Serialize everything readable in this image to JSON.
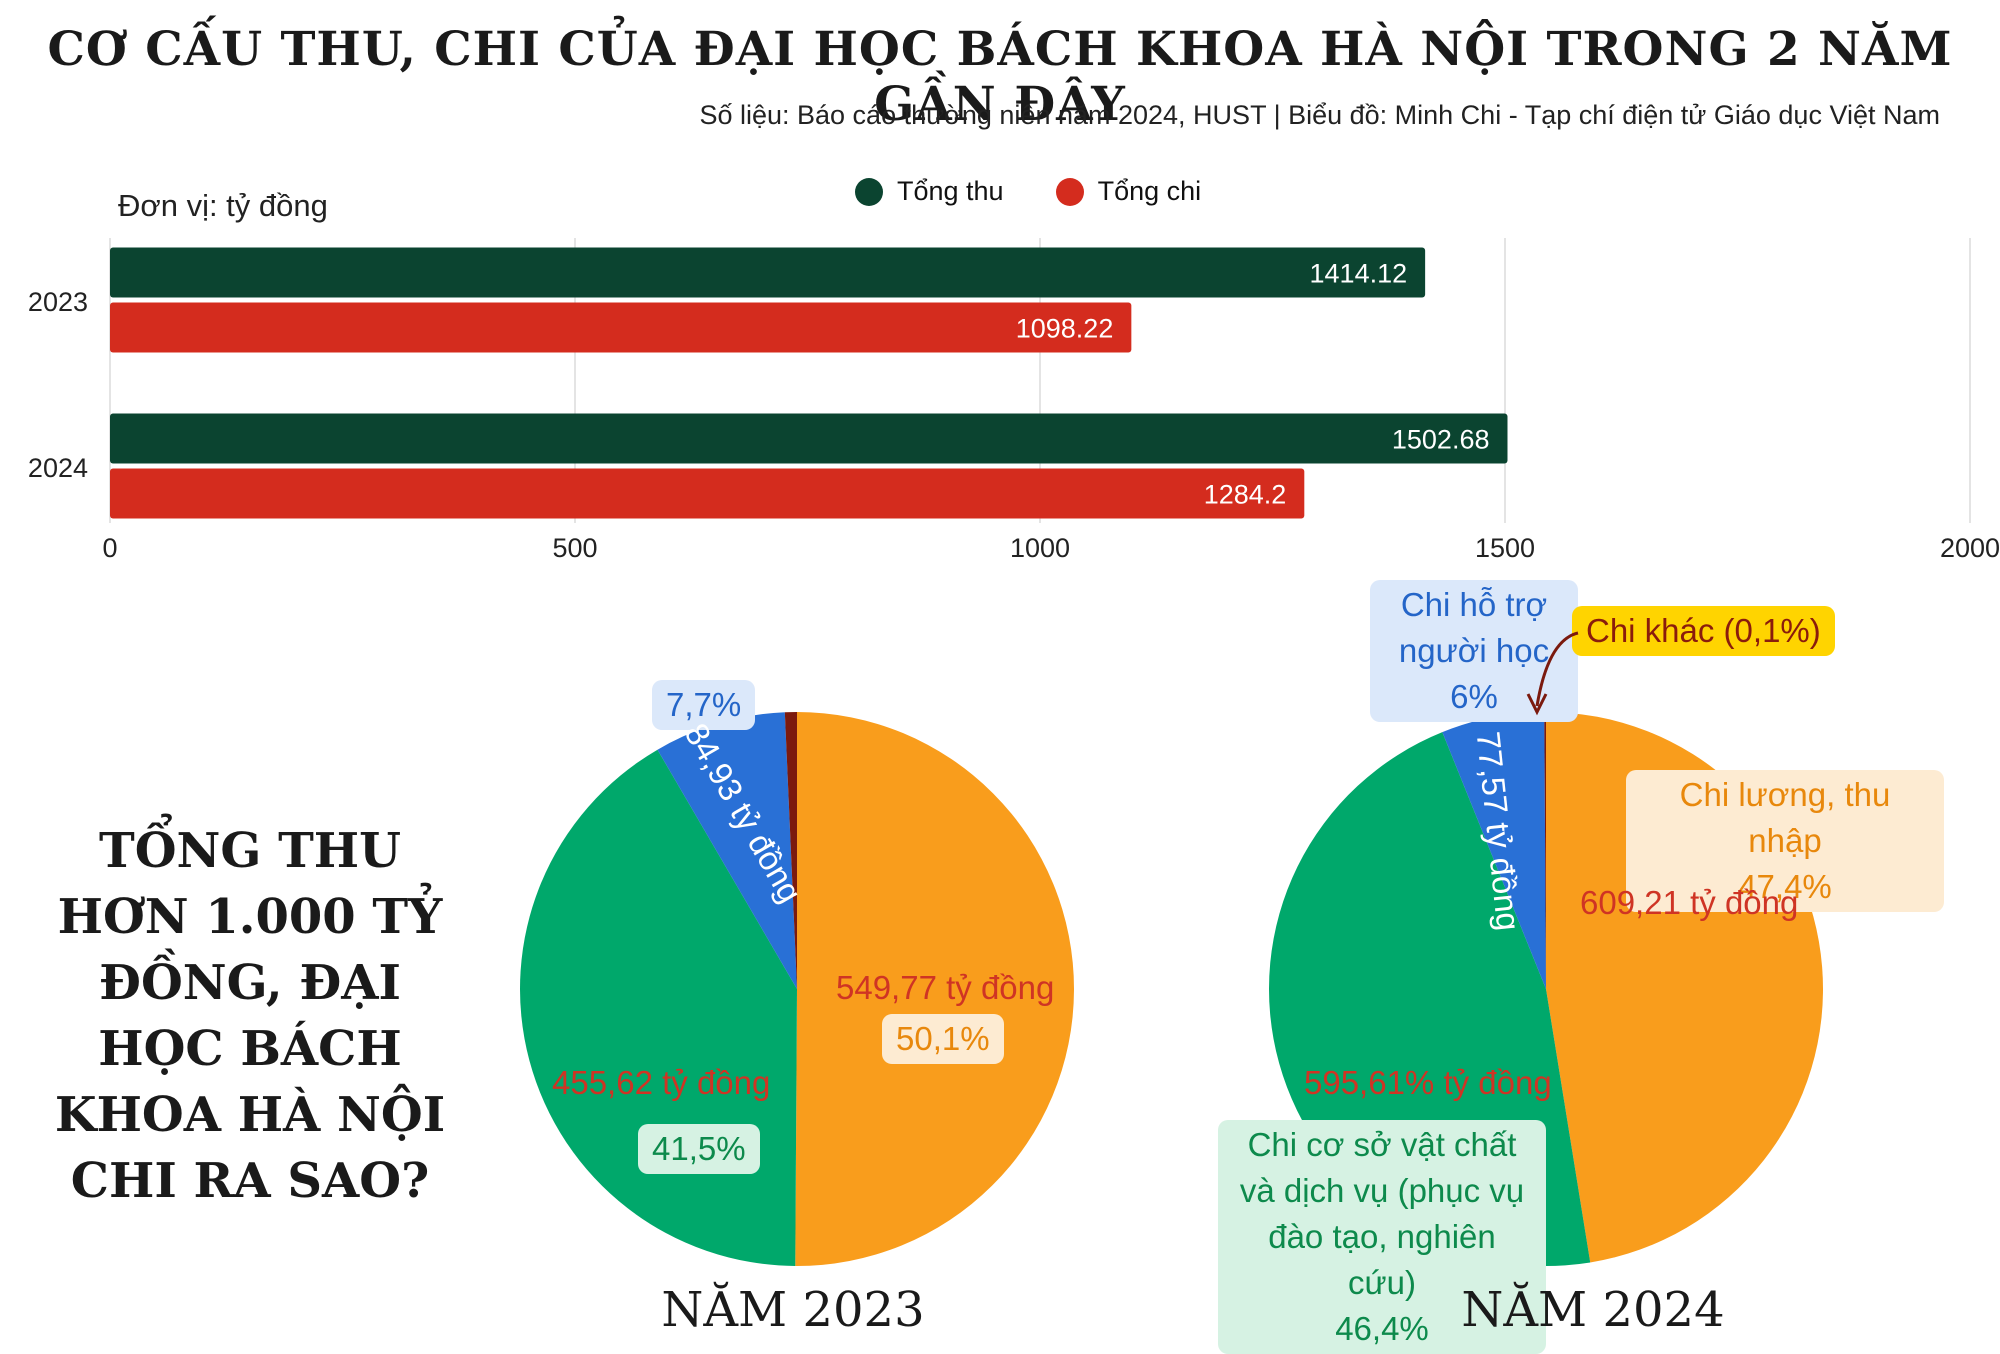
{
  "title": "CƠ CẤU THU, CHI CỦA ĐẠI HỌC BÁCH KHOA HÀ NỘI TRONG 2 NĂM GẦN ĐÂY",
  "subtitle": "Số liệu: Báo cáo thường niên năm 2024, HUST  |  Biểu đồ: Minh Chi - Tạp chí điện tử Giáo dục Việt Nam",
  "side_title": "TỔNG THU HƠN 1.000 TỶ ĐỒNG, ĐẠI HỌC BÁCH KHOA HÀ NỘI CHI RA SAO?",
  "colors": {
    "thu": "#0b4430",
    "chi": "#d42c1e",
    "orange": "#f99d1c",
    "green": "#00a86b",
    "blue": "#2970d6",
    "darkred": "#7b1a0e"
  },
  "chart_data": [
    {
      "type": "bar",
      "orientation": "horizontal",
      "unit_label": "Đơn vị: tỷ đồng",
      "categories": [
        "2023",
        "2024"
      ],
      "series": [
        {
          "name": "Tổng thu",
          "values": [
            1414.12,
            1502.68
          ],
          "labels": [
            "1414.12",
            "1502.68"
          ]
        },
        {
          "name": "Tổng chi",
          "values": [
            1098.22,
            1284.2
          ],
          "labels": [
            "1098.22",
            "1284.2"
          ]
        }
      ],
      "xlim": [
        0,
        2000
      ],
      "xticks": [
        "0",
        "500",
        "1000",
        "1500",
        "2000"
      ],
      "tick_values": [
        0,
        500,
        1000,
        1500,
        2000
      ],
      "grid": true,
      "legend": "top-center"
    },
    {
      "type": "pie",
      "caption": "NĂM 2023",
      "slices": [
        {
          "value": 50.1,
          "color_key": "orange",
          "pct_label": "50,1%",
          "amount_label": "549,77 tỷ đồng"
        },
        {
          "value": 41.5,
          "color_key": "green",
          "pct_label": "41,5%",
          "amount_label": "455,62 tỷ đồng"
        },
        {
          "value": 7.7,
          "color_key": "blue",
          "pct_label": "7,7%",
          "amount_label": "84,93 tỷ đồng"
        },
        {
          "value": 0.7,
          "color_key": "darkred"
        }
      ]
    },
    {
      "type": "pie",
      "caption": "NĂM 2024",
      "slices": [
        {
          "value": 47.4,
          "color_key": "orange",
          "name": "Chi lương, thu nhập",
          "pct_label": "47,4%",
          "amount_label": "609,21 tỷ đồng"
        },
        {
          "value": 46.4,
          "color_key": "green",
          "name": "Chi cơ sở vật chất và dịch vụ (phục vụ đào tạo, nghiên cứu)",
          "pct_label": "46,4%",
          "amount_label": "595,61% tỷ đồng"
        },
        {
          "value": 6,
          "color_key": "blue",
          "name": "Chi hỗ trợ người học",
          "pct_label": "6%",
          "amount_label": "77,57 tỷ đồng"
        },
        {
          "value": 0.1,
          "color_key": "darkred",
          "name": "Chi khác",
          "pct_label": "Chi khác (0,1%)"
        }
      ]
    }
  ]
}
